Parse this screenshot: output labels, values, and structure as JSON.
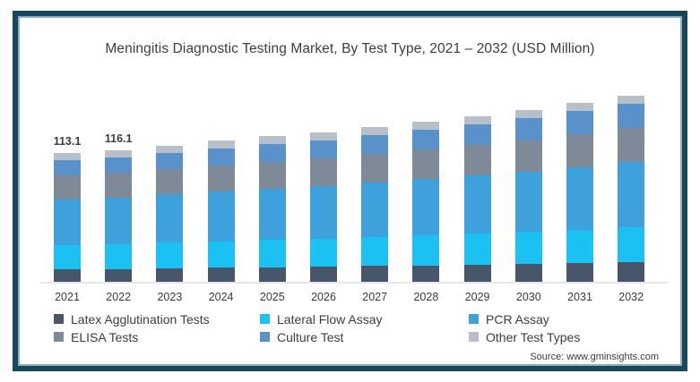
{
  "title": "Meningitis Diagnostic Testing Market, By Test Type, 2021 – 2032 (USD Million)",
  "source": "Source: www.gminsights.com",
  "colors": {
    "frame_border": "#15485f",
    "frame_inner_line": "#8fb0bd",
    "axis_line": "#e4e8ea",
    "text": "#3d3d3d"
  },
  "chart_data": {
    "type": "bar",
    "stacked": true,
    "title": "Meningitis Diagnostic Testing Market, By Test Type, 2021 – 2032 (USD Million)",
    "xlabel": "",
    "ylabel": "",
    "y_axis_visible": false,
    "grid": false,
    "legend_position": "bottom",
    "ylim": [
      0,
      170
    ],
    "categories": [
      "2021",
      "2022",
      "2023",
      "2024",
      "2025",
      "2026",
      "2027",
      "2028",
      "2029",
      "2030",
      "2031",
      "2032"
    ],
    "series": [
      {
        "name": "Latex Agglutination Tests",
        "color": "#47566b",
        "values": [
          11.7,
          12.0,
          12.5,
          13.0,
          13.5,
          13.9,
          14.5,
          15.1,
          15.7,
          16.4,
          17.2,
          18.0
        ]
      },
      {
        "name": "Lateral Flow Assay",
        "color": "#1bc1f2",
        "values": [
          21.1,
          21.6,
          22.4,
          23.1,
          24.0,
          24.5,
          25.3,
          26.2,
          27.1,
          28.2,
          29.3,
          30.5
        ]
      },
      {
        "name": "PCR Assay",
        "color": "#3fa1dc",
        "values": [
          39.8,
          41.0,
          42.2,
          43.8,
          44.9,
          46.0,
          47.6,
          49.2,
          50.8,
          52.7,
          54.8,
          57.0
        ]
      },
      {
        "name": "ELISA Tests",
        "color": "#7e8a98",
        "values": [
          21.1,
          21.5,
          22.3,
          22.9,
          23.6,
          24.1,
          25.0,
          25.8,
          26.6,
          27.5,
          28.6,
          29.7
        ]
      },
      {
        "name": "Culture Test",
        "color": "#5991cb",
        "values": [
          13.3,
          13.7,
          14.3,
          14.9,
          15.5,
          16.1,
          16.8,
          17.5,
          18.3,
          19.1,
          20.1,
          21.1
        ]
      },
      {
        "name": "Other Test Types",
        "color": "#b7bfc8",
        "values": [
          6.1,
          6.3,
          6.4,
          6.4,
          6.5,
          6.5,
          6.6,
          6.7,
          6.7,
          6.8,
          6.9,
          6.9
        ]
      }
    ],
    "totals": [
      113.1,
      116.1,
      120.1,
      124.1,
      128.0,
      131.1,
      135.8,
      140.5,
      145.2,
      150.7,
      156.9,
      163.2
    ],
    "data_labels_shown": {
      "2021": "113.1",
      "2022": "116.1"
    }
  }
}
